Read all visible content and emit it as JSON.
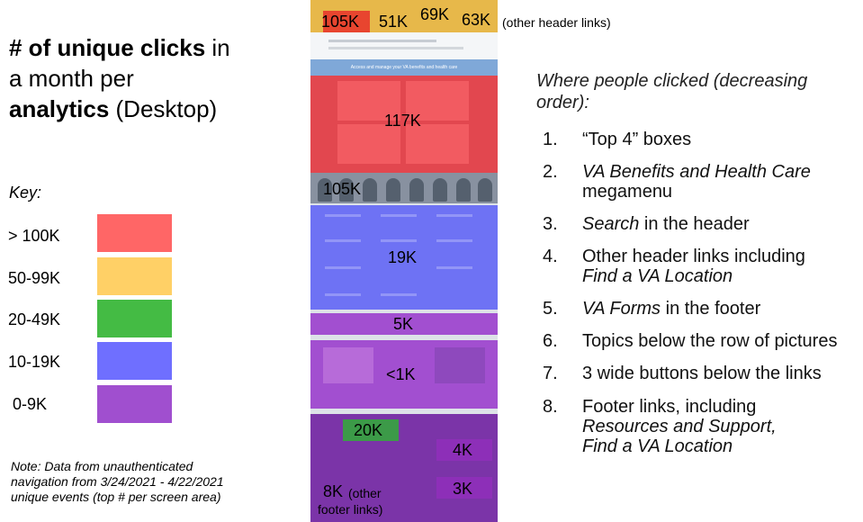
{
  "title": {
    "bold1": "# of unique clicks",
    "rest1": " in",
    "line2": "a month per",
    "bold2": "analytics",
    "rest2": " (Desktop)"
  },
  "key": {
    "title": "Key:",
    "items": [
      {
        "label": "> 100K",
        "color": "#ff6666"
      },
      {
        "label": "50-99K",
        "color": "#ffd066"
      },
      {
        "label": "20-49K",
        "color": "#44bb44"
      },
      {
        "label": "10-19K",
        "color": "#6f6fff"
      },
      {
        "label": "0-9K",
        "color": "#a04fcf"
      }
    ]
  },
  "note": {
    "line1": "Note: Data from unauthenticated",
    "line2": "navigation from 3/24/2021 - 4/22/2021",
    "line3": "unique events (top # per screen area)"
  },
  "screenshot": {
    "header_values": [
      "105K",
      "51K",
      "69K",
      "63K"
    ],
    "header_note": "(other header links)",
    "banner_text": "Access and manage your VA benefits and health care",
    "top4_value": "117K",
    "topics_value": "19K",
    "buttons_value": "5K",
    "wide_value": "<1K",
    "footer_forms_value": "20K",
    "footer_value_a": "4K",
    "footer_value_b": "3K",
    "footer_other_value": "8K",
    "footer_other_note1": "(other",
    "footer_other_note2": "footer links)"
  },
  "ranking": {
    "heading": "Where people clicked (decreasing order):",
    "items": [
      {
        "num": "1.",
        "text": "“Top 4” boxes"
      },
      {
        "num": "2.",
        "em": "VA Benefits and Health Care",
        "text": "megamenu"
      },
      {
        "num": "3.",
        "em": "Search",
        "text": " in the header"
      },
      {
        "num": "4.",
        "text": "Other header links including",
        "em": "Find a VA Location"
      },
      {
        "num": "5.",
        "em": "VA Forms",
        "text": " in the footer"
      },
      {
        "num": "6.",
        "text": "Topics below the row of pictures"
      },
      {
        "num": "7.",
        "text": "3 wide buttons below the links"
      },
      {
        "num": "8.",
        "text": "Footer links, including",
        "em": "Resources and Support,",
        "em2": "Find a VA Location"
      }
    ]
  }
}
